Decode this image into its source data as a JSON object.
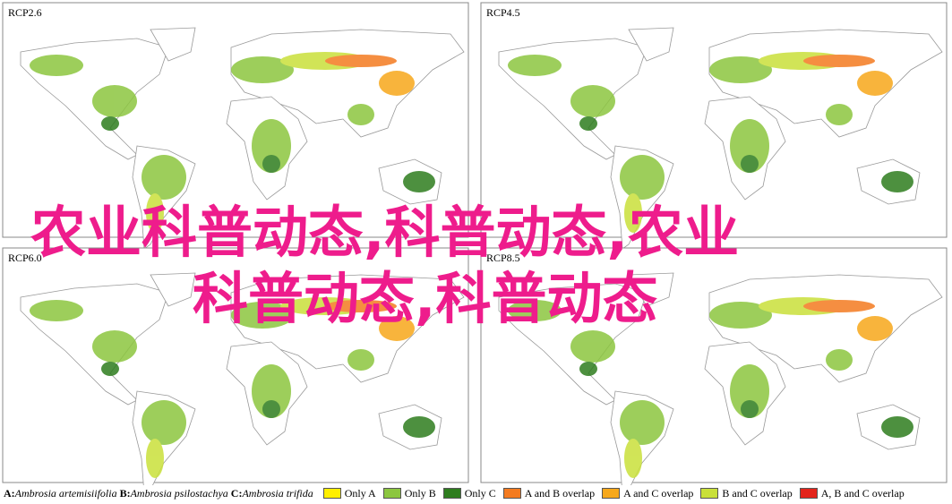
{
  "panels": [
    {
      "label": "RCP2.6"
    },
    {
      "label": "RCP4.5"
    },
    {
      "label": "RCP6.0"
    },
    {
      "label": "RCP8.5"
    }
  ],
  "overlay": {
    "lines": [
      "农业科普动态,科普动态,农业",
      "科普动态,科普动态"
    ]
  },
  "legend": {
    "species": [
      {
        "letter": "A:",
        "name": "Ambrosia artemisiifolia"
      },
      {
        "letter": "B:",
        "name": "Ambrosia psilostachya"
      },
      {
        "letter": "C:",
        "name": "Ambrosia trifida"
      }
    ],
    "entries": [
      {
        "label": "Only A",
        "color": "#ffef00"
      },
      {
        "label": "Only B",
        "color": "#8cc63f"
      },
      {
        "label": "Only C",
        "color": "#2e7d1e"
      },
      {
        "label": "A and B overlap",
        "color": "#f47b20"
      },
      {
        "label": "A and C overlap",
        "color": "#f7a81b"
      },
      {
        "label": "B and C overlap",
        "color": "#c9e03a"
      },
      {
        "label": "A, B and C overlap",
        "color": "#e3241b"
      }
    ]
  }
}
